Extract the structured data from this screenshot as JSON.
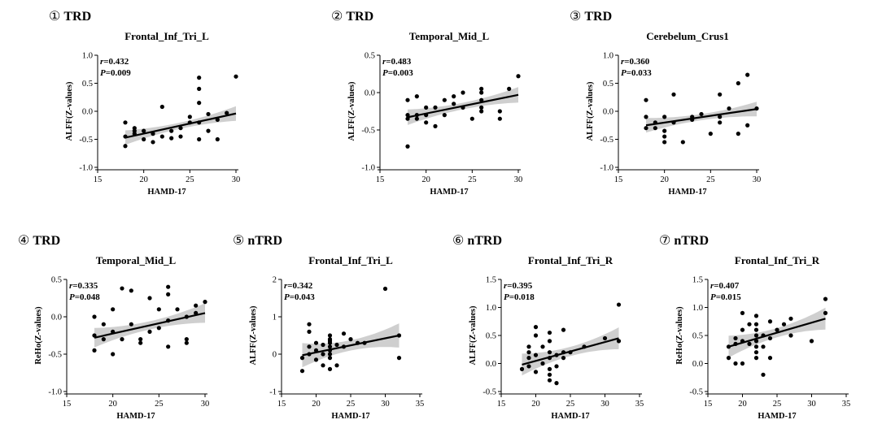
{
  "chart_data": [
    {
      "type": "scatter",
      "number": "①",
      "group": "TRD",
      "title": "Frontal_Inf_Tri_L",
      "xlabel": "HAMD-17",
      "ylabel": "ALFF(Z-values)",
      "xlim": [
        15,
        30
      ],
      "ylim": [
        -1.0,
        1.0
      ],
      "xticks": [
        "15",
        "20",
        "25",
        "30"
      ],
      "yticks": [
        "-1.0",
        "-0.5",
        "0.0",
        "0.5",
        "1.0"
      ],
      "r_label": "r=0.432",
      "p_label": "P=0.009",
      "fit": {
        "x0": 18,
        "y0": -0.47,
        "x1": 30,
        "y1": -0.04,
        "ci": 0.1
      },
      "points": [
        [
          18,
          -0.2
        ],
        [
          18,
          -0.45
        ],
        [
          18,
          -0.62
        ],
        [
          19,
          -0.3
        ],
        [
          19,
          -0.35
        ],
        [
          19,
          -0.4
        ],
        [
          20,
          -0.35
        ],
        [
          20,
          -0.5
        ],
        [
          21,
          -0.4
        ],
        [
          21,
          -0.55
        ],
        [
          22,
          0.08
        ],
        [
          22,
          -0.45
        ],
        [
          23,
          -0.35
        ],
        [
          23,
          -0.48
        ],
        [
          24,
          -0.3
        ],
        [
          24,
          -0.45
        ],
        [
          25,
          -0.1
        ],
        [
          25,
          -0.2
        ],
        [
          26,
          0.6
        ],
        [
          26,
          0.4
        ],
        [
          26,
          0.15
        ],
        [
          26,
          -0.2
        ],
        [
          26,
          -0.5
        ],
        [
          27,
          -0.05
        ],
        [
          27,
          -0.35
        ],
        [
          28,
          -0.15
        ],
        [
          28,
          -0.5
        ],
        [
          29,
          -0.03
        ],
        [
          30,
          0.62
        ]
      ]
    },
    {
      "type": "scatter",
      "number": "②",
      "group": "TRD",
      "title": "Temporal_Mid_L",
      "xlabel": "HAMD-17",
      "ylabel": "ALFF(Z-values)",
      "xlim": [
        15,
        30
      ],
      "ylim": [
        -1.0,
        0.5
      ],
      "xticks": [
        "15",
        "20",
        "25",
        "30"
      ],
      "yticks": [
        "-1.0",
        "-0.5",
        "0.0",
        "0.5"
      ],
      "r_label": "r=0.483",
      "p_label": "P=0.003",
      "fit": {
        "x0": 18,
        "y0": -0.33,
        "x1": 30,
        "y1": -0.03,
        "ci": 0.08
      },
      "points": [
        [
          18,
          -0.1
        ],
        [
          18,
          -0.3
        ],
        [
          18,
          -0.35
        ],
        [
          18,
          -0.72
        ],
        [
          19,
          -0.05
        ],
        [
          19,
          -0.3
        ],
        [
          19,
          -0.35
        ],
        [
          20,
          -0.2
        ],
        [
          20,
          -0.3
        ],
        [
          20,
          -0.4
        ],
        [
          21,
          -0.2
        ],
        [
          21,
          -0.45
        ],
        [
          22,
          -0.1
        ],
        [
          22,
          -0.3
        ],
        [
          23,
          -0.05
        ],
        [
          23,
          -0.15
        ],
        [
          24,
          0.0
        ],
        [
          24,
          -0.2
        ],
        [
          25,
          -0.35
        ],
        [
          26,
          0.05
        ],
        [
          26,
          0.0
        ],
        [
          26,
          -0.1
        ],
        [
          26,
          -0.2
        ],
        [
          26,
          -0.25
        ],
        [
          28,
          -0.25
        ],
        [
          28,
          -0.35
        ],
        [
          29,
          0.05
        ],
        [
          30,
          0.22
        ]
      ]
    },
    {
      "type": "scatter",
      "number": "③",
      "group": "TRD",
      "title": "Cerebelum_Crus1",
      "xlabel": "HAMD-17",
      "ylabel": "ALFF(Z-values)",
      "xlim": [
        15,
        30
      ],
      "ylim": [
        -1.0,
        1.0
      ],
      "xticks": [
        "15",
        "20",
        "25",
        "30"
      ],
      "yticks": [
        "-1.0",
        "-0.5",
        "0.0",
        "0.5",
        "1.0"
      ],
      "r_label": "r=0.360",
      "p_label": "P=0.033",
      "fit": {
        "x0": 18,
        "y0": -0.25,
        "x1": 30,
        "y1": 0.04,
        "ci": 0.1
      },
      "points": [
        [
          18,
          0.2
        ],
        [
          18,
          -0.1
        ],
        [
          18,
          -0.3
        ],
        [
          19,
          -0.2
        ],
        [
          19,
          -0.3
        ],
        [
          20,
          -0.1
        ],
        [
          20,
          -0.35
        ],
        [
          20,
          -0.45
        ],
        [
          20,
          -0.55
        ],
        [
          21,
          -0.2
        ],
        [
          21,
          0.3
        ],
        [
          22,
          -0.55
        ],
        [
          23,
          -0.1
        ],
        [
          23,
          -0.15
        ],
        [
          24,
          -0.05
        ],
        [
          25,
          -0.4
        ],
        [
          26,
          0.3
        ],
        [
          26,
          -0.1
        ],
        [
          26,
          -0.2
        ],
        [
          27,
          0.05
        ],
        [
          28,
          0.5
        ],
        [
          28,
          -0.4
        ],
        [
          29,
          0.65
        ],
        [
          29,
          -0.25
        ],
        [
          30,
          0.05
        ]
      ]
    },
    {
      "type": "scatter",
      "number": "④",
      "group": "TRD",
      "title": "Temporal_Mid_L",
      "xlabel": "HAMD-17",
      "ylabel": "ReHo(Z-values)",
      "xlim": [
        15,
        30
      ],
      "ylim": [
        -1.0,
        0.5
      ],
      "xticks": [
        "15",
        "20",
        "25",
        "30"
      ],
      "yticks": [
        "-1.0",
        "-0.5",
        "0.0",
        "0.5"
      ],
      "r_label": "r=0.335",
      "p_label": "P=0.048",
      "fit": {
        "x0": 18,
        "y0": -0.28,
        "x1": 30,
        "y1": 0.05,
        "ci": 0.1
      },
      "points": [
        [
          18,
          0.0
        ],
        [
          18,
          -0.25
        ],
        [
          18,
          -0.45
        ],
        [
          19,
          -0.1
        ],
        [
          19,
          -0.3
        ],
        [
          20,
          0.1
        ],
        [
          20,
          -0.2
        ],
        [
          20,
          -0.5
        ],
        [
          21,
          0.38
        ],
        [
          21,
          -0.3
        ],
        [
          22,
          0.35
        ],
        [
          22,
          -0.1
        ],
        [
          23,
          -0.3
        ],
        [
          23,
          -0.35
        ],
        [
          24,
          0.25
        ],
        [
          24,
          -0.2
        ],
        [
          25,
          0.1
        ],
        [
          25,
          -0.15
        ],
        [
          26,
          0.4
        ],
        [
          26,
          0.3
        ],
        [
          26,
          -0.05
        ],
        [
          26,
          -0.4
        ],
        [
          27,
          0.1
        ],
        [
          28,
          0.0
        ],
        [
          28,
          -0.3
        ],
        [
          28,
          -0.35
        ],
        [
          29,
          0.15
        ],
        [
          29,
          0.05
        ],
        [
          30,
          0.2
        ]
      ]
    },
    {
      "type": "scatter",
      "number": "⑤",
      "group": "nTRD",
      "title": "Frontal_Inf_Tri_L",
      "xlabel": "HAMD-17",
      "ylabel": "ALFF(Z-values)",
      "xlim": [
        15,
        35
      ],
      "ylim": [
        -1,
        2
      ],
      "xticks": [
        "15",
        "20",
        "25",
        "30",
        "35"
      ],
      "yticks": [
        "-1",
        "0",
        "1",
        "2"
      ],
      "r_label": "r=0.342",
      "p_label": "P=0.043",
      "fit": {
        "x0": 18,
        "y0": -0.03,
        "x1": 32,
        "y1": 0.5,
        "ci": 0.25
      },
      "points": [
        [
          18,
          -0.45
        ],
        [
          18,
          -0.1
        ],
        [
          19,
          0.8
        ],
        [
          19,
          0.6
        ],
        [
          19,
          0.2
        ],
        [
          19,
          0.0
        ],
        [
          20,
          0.3
        ],
        [
          20,
          0.1
        ],
        [
          20,
          -0.15
        ],
        [
          21,
          0.25
        ],
        [
          21,
          0.0
        ],
        [
          21,
          -0.3
        ],
        [
          22,
          0.5
        ],
        [
          22,
          0.4
        ],
        [
          22,
          0.35
        ],
        [
          22,
          0.3
        ],
        [
          22,
          0.2
        ],
        [
          22,
          0.1
        ],
        [
          22,
          0.0
        ],
        [
          22,
          -0.1
        ],
        [
          22,
          -0.4
        ],
        [
          23,
          0.25
        ],
        [
          23,
          -0.3
        ],
        [
          24,
          0.55
        ],
        [
          24,
          0.2
        ],
        [
          25,
          0.4
        ],
        [
          26,
          0.3
        ],
        [
          27,
          0.3
        ],
        [
          30,
          1.75
        ],
        [
          32,
          0.5
        ],
        [
          32,
          -0.1
        ]
      ]
    },
    {
      "type": "scatter",
      "number": "⑥",
      "group": "nTRD",
      "title": "Frontal_Inf_Tri_R",
      "xlabel": "HAMD-17",
      "ylabel": "ALFF(Z-values)",
      "xlim": [
        15,
        35
      ],
      "ylim": [
        -0.5,
        1.5
      ],
      "xticks": [
        "15",
        "20",
        "25",
        "30",
        "35"
      ],
      "yticks": [
        "-0.5",
        "0.0",
        "0.5",
        "1.0",
        "1.5"
      ],
      "r_label": "r=0.395",
      "p_label": "P=0.018",
      "fit": {
        "x0": 18,
        "y0": -0.02,
        "x1": 32,
        "y1": 0.45,
        "ci": 0.15
      },
      "points": [
        [
          18,
          -0.1
        ],
        [
          19,
          0.3
        ],
        [
          19,
          0.2
        ],
        [
          19,
          0.1
        ],
        [
          19,
          -0.05
        ],
        [
          20,
          0.65
        ],
        [
          20,
          0.5
        ],
        [
          20,
          0.15
        ],
        [
          20,
          -0.15
        ],
        [
          21,
          0.3
        ],
        [
          21,
          0.0
        ],
        [
          22,
          0.55
        ],
        [
          22,
          0.4
        ],
        [
          22,
          0.2
        ],
        [
          22,
          0.1
        ],
        [
          22,
          -0.1
        ],
        [
          22,
          -0.2
        ],
        [
          22,
          -0.3
        ],
        [
          23,
          0.15
        ],
        [
          23,
          -0.05
        ],
        [
          23,
          -0.35
        ],
        [
          24,
          0.6
        ],
        [
          24,
          0.2
        ],
        [
          24,
          0.1
        ],
        [
          25,
          0.2
        ],
        [
          27,
          0.3
        ],
        [
          30,
          0.45
        ],
        [
          32,
          1.05
        ],
        [
          32,
          0.4
        ]
      ]
    },
    {
      "type": "scatter",
      "number": "⑦",
      "group": "nTRD",
      "title": "Frontal_Inf_Tri_R",
      "xlabel": "HAMD-17",
      "ylabel": "ReHo(Z-values)",
      "xlim": [
        15,
        35
      ],
      "ylim": [
        -0.5,
        1.5
      ],
      "xticks": [
        "15",
        "20",
        "25",
        "30",
        "35"
      ],
      "yticks": [
        "-0.5",
        "0.0",
        "0.5",
        "1.0",
        "1.5"
      ],
      "r_label": "r=0.407",
      "p_label": "P=0.015",
      "fit": {
        "x0": 18,
        "y0": 0.3,
        "x1": 32,
        "y1": 0.8,
        "ci": 0.15
      },
      "points": [
        [
          18,
          0.1
        ],
        [
          18,
          0.3
        ],
        [
          19,
          0.45
        ],
        [
          19,
          0.35
        ],
        [
          19,
          0.0
        ],
        [
          20,
          0.9
        ],
        [
          20,
          0.6
        ],
        [
          20,
          0.4
        ],
        [
          20,
          0.0
        ],
        [
          21,
          0.7
        ],
        [
          21,
          0.35
        ],
        [
          22,
          0.85
        ],
        [
          22,
          0.7
        ],
        [
          22,
          0.6
        ],
        [
          22,
          0.5
        ],
        [
          22,
          0.4
        ],
        [
          22,
          0.3
        ],
        [
          22,
          0.2
        ],
        [
          22,
          0.1
        ],
        [
          23,
          0.5
        ],
        [
          23,
          0.3
        ],
        [
          23,
          -0.2
        ],
        [
          24,
          0.75
        ],
        [
          24,
          0.45
        ],
        [
          24,
          0.1
        ],
        [
          25,
          0.6
        ],
        [
          26,
          0.7
        ],
        [
          27,
          0.8
        ],
        [
          27,
          0.5
        ],
        [
          30,
          0.4
        ],
        [
          32,
          1.15
        ],
        [
          32,
          0.9
        ]
      ]
    }
  ]
}
